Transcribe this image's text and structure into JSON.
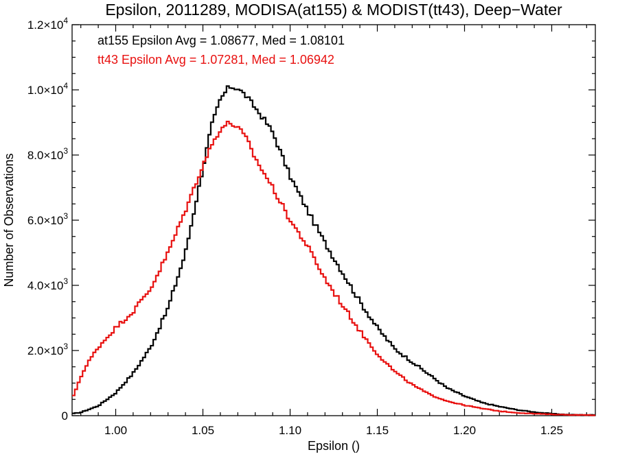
{
  "chart_data": {
    "type": "line",
    "title": "Epsilon, 2011289, MODISA(at155) & MODIST(tt43), Deep−Water",
    "xlabel": "Epsilon ()",
    "ylabel": "Number of Observations",
    "xlim": [
      0.975,
      1.275
    ],
    "ylim": [
      0,
      12000
    ],
    "x_ticks": [
      1.0,
      1.05,
      1.1,
      1.15,
      1.2,
      1.25
    ],
    "x_tick_labels": [
      "1.00",
      "1.05",
      "1.10",
      "1.15",
      "1.20",
      "1.25"
    ],
    "y_ticks": [
      0,
      2000,
      4000,
      6000,
      8000,
      10000,
      12000
    ],
    "y_tick_labels": [
      {
        "mantissa": "0",
        "exp": ""
      },
      {
        "mantissa": "2.0×10",
        "exp": "3"
      },
      {
        "mantissa": "4.0×10",
        "exp": "3"
      },
      {
        "mantissa": "6.0×10",
        "exp": "3"
      },
      {
        "mantissa": "8.0×10",
        "exp": "3"
      },
      {
        "mantissa": "1.0×10",
        "exp": "4"
      },
      {
        "mantissa": "1.2×10",
        "exp": "4"
      }
    ],
    "grid": false,
    "step": true,
    "annotations": [
      {
        "text": "at155 Epsilon Avg = 1.08677, Med = 1.08101",
        "color": "#000000"
      },
      {
        "text": "tt43 Epsilon Avg = 1.07281, Med = 1.06942",
        "color": "#e8100f"
      }
    ],
    "series": [
      {
        "color": "#000000",
        "x": [
          0.975,
          0.98,
          0.99,
          1.0,
          1.01,
          1.02,
          1.03,
          1.04,
          1.05,
          1.055,
          1.06,
          1.065,
          1.07,
          1.075,
          1.08,
          1.085,
          1.09,
          1.1,
          1.11,
          1.12,
          1.13,
          1.14,
          1.15,
          1.16,
          1.17,
          1.18,
          1.19,
          1.2,
          1.21,
          1.22,
          1.23,
          1.24,
          1.25,
          1.26,
          1.275
        ],
        "y": [
          60,
          100,
          300,
          700,
          1300,
          2100,
          3300,
          5000,
          7600,
          8900,
          9700,
          10100,
          10050,
          9800,
          9450,
          9100,
          8700,
          7350,
          6300,
          5300,
          4400,
          3500,
          2700,
          2050,
          1650,
          1250,
          850,
          600,
          400,
          280,
          180,
          110,
          60,
          30,
          20
        ]
      },
      {
        "color": "#e8100f",
        "x": [
          0.975,
          0.98,
          0.985,
          0.99,
          1.0,
          1.01,
          1.02,
          1.03,
          1.04,
          1.05,
          1.055,
          1.06,
          1.065,
          1.07,
          1.075,
          1.08,
          1.09,
          1.1,
          1.11,
          1.12,
          1.13,
          1.14,
          1.15,
          1.16,
          1.17,
          1.18,
          1.19,
          1.2,
          1.21,
          1.22,
          1.23,
          1.24,
          1.25,
          1.26,
          1.275
        ],
        "y": [
          500,
          1200,
          1700,
          2100,
          2700,
          3200,
          3900,
          5000,
          6300,
          7700,
          8300,
          8800,
          9000,
          8850,
          8500,
          7900,
          7000,
          6000,
          5200,
          4200,
          3400,
          2600,
          1900,
          1350,
          950,
          650,
          450,
          320,
          220,
          140,
          90,
          60,
          40,
          25,
          15
        ]
      }
    ]
  }
}
